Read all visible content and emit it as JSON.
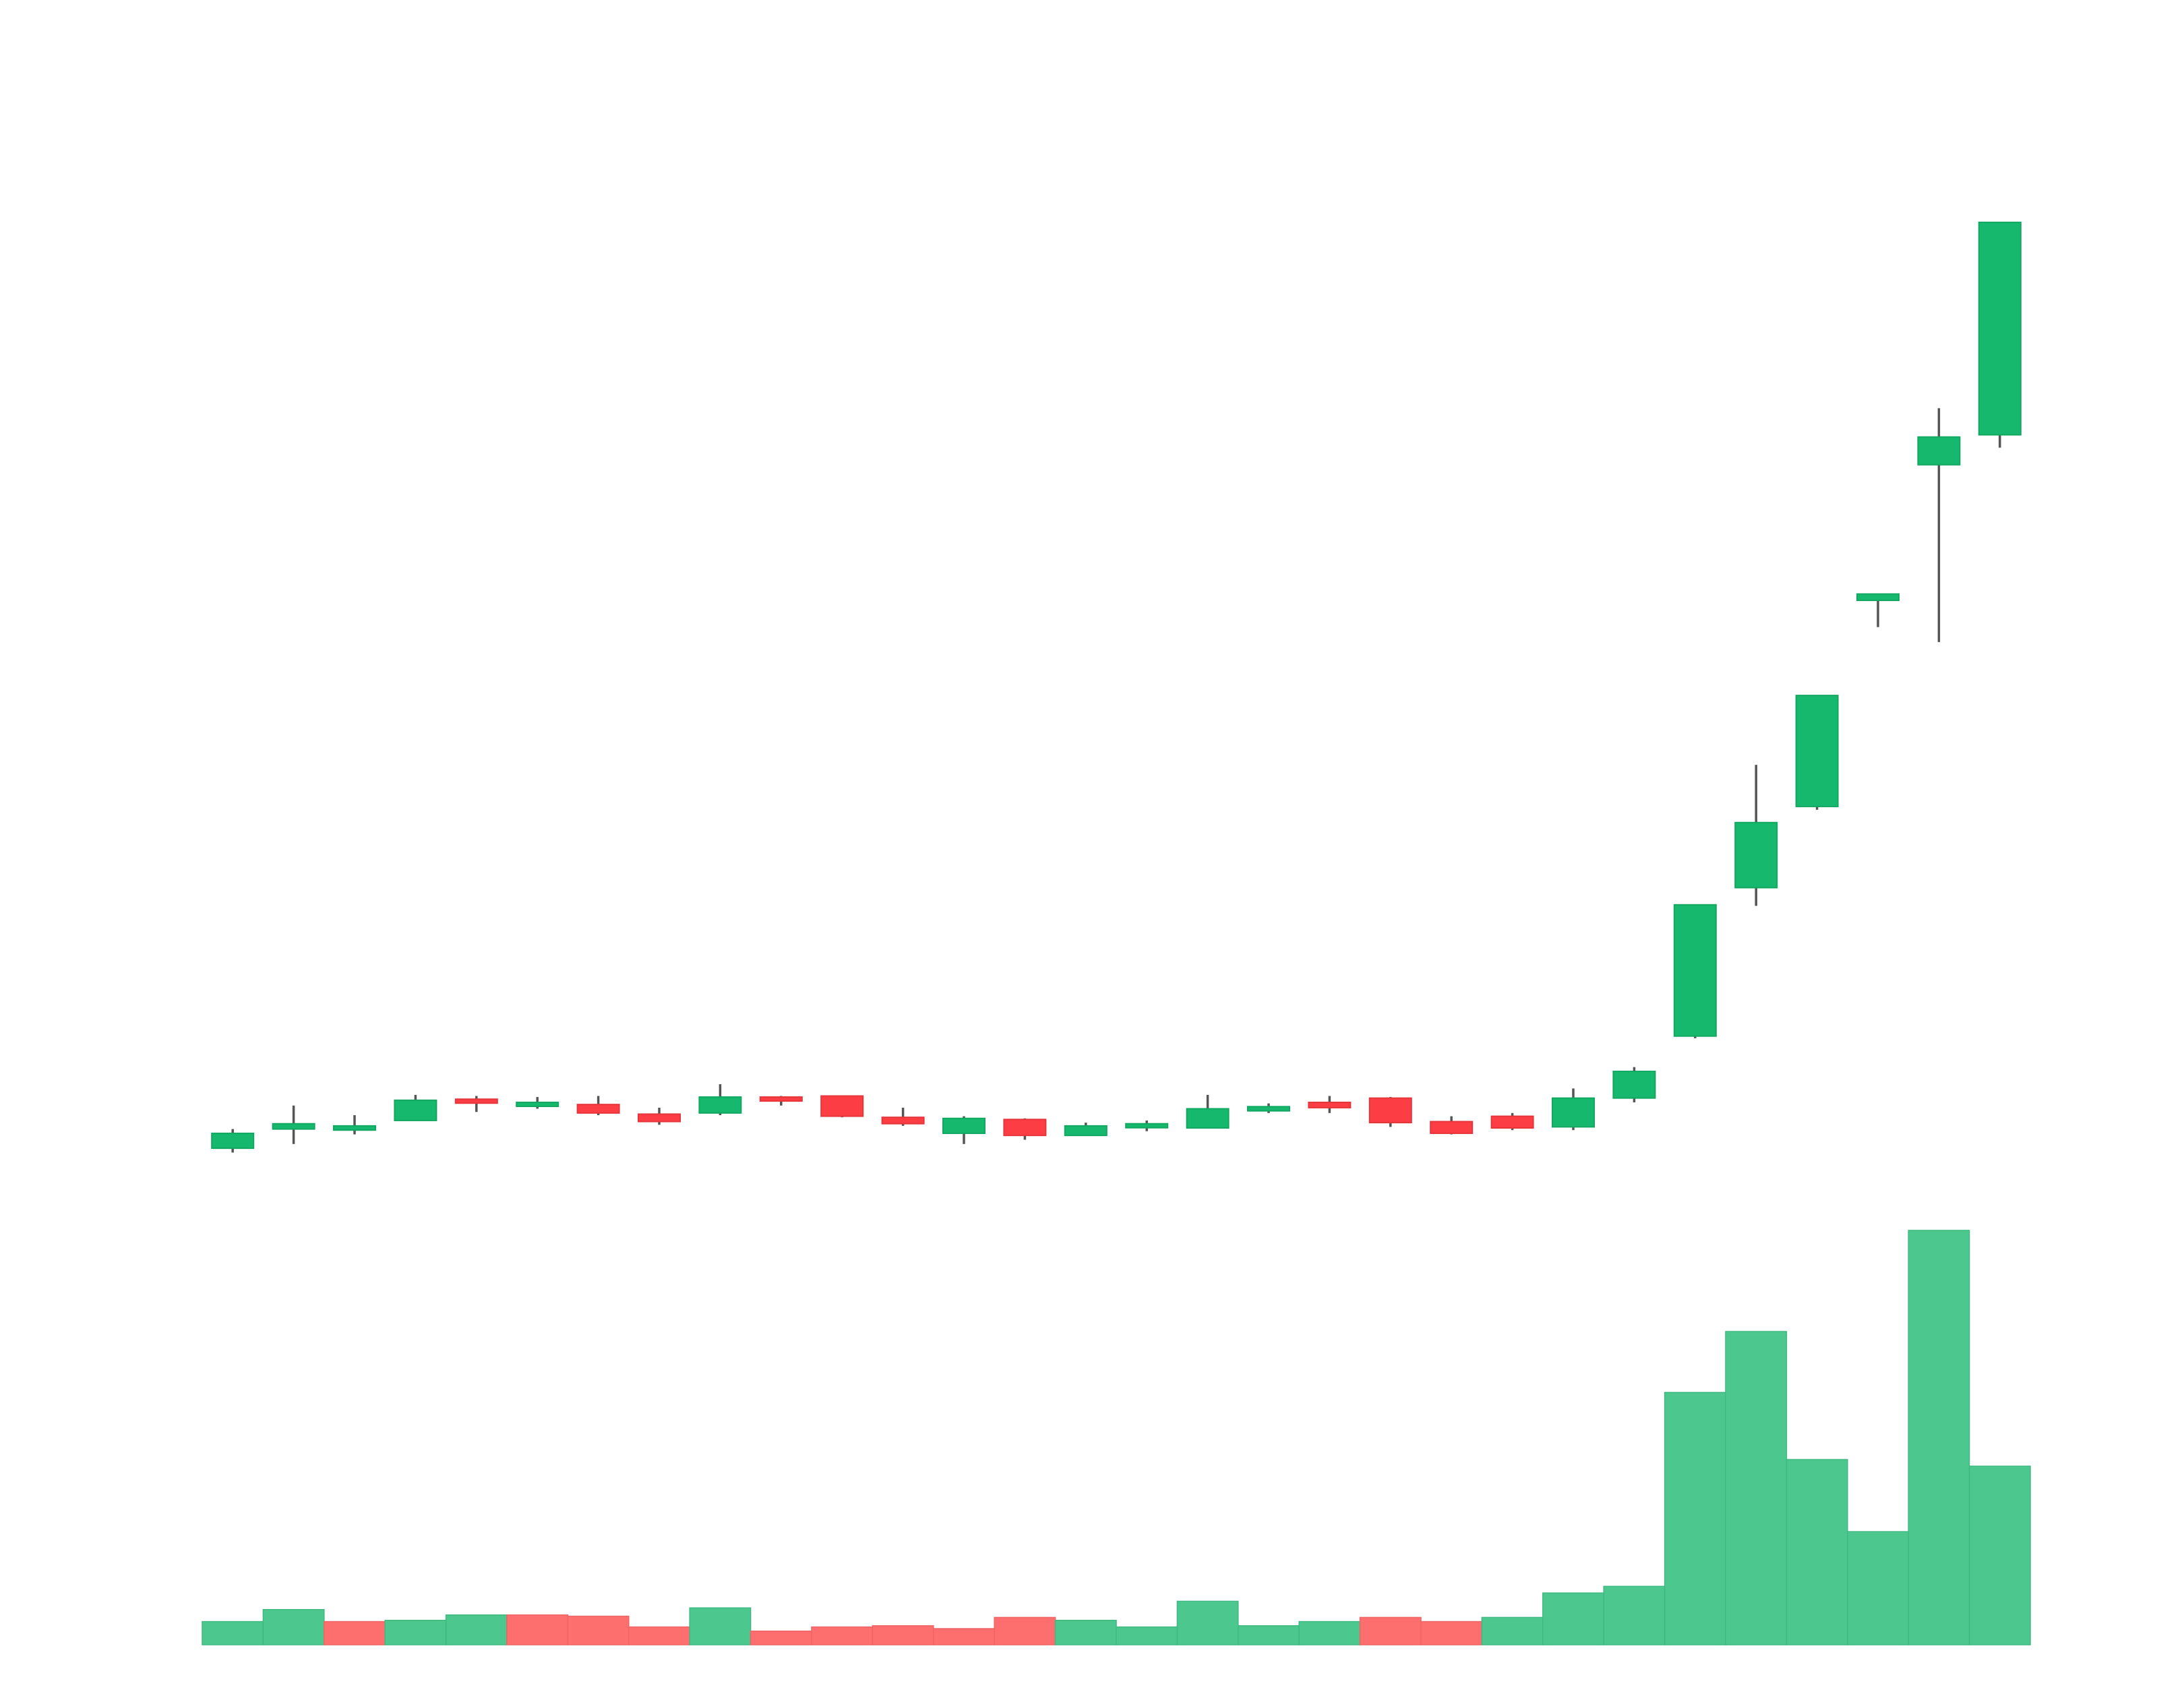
{
  "chart_data": {
    "type": "candlestick",
    "title": "",
    "xlabel": "",
    "ylabel": "",
    "grid": false,
    "legend": "none",
    "colors": {
      "up_body": "#16b86d",
      "down_body": "#fc3d44",
      "wick": "#555555",
      "up_volume": "#4cc88f",
      "down_volume": "#fd6f6f",
      "background": "#ffffff"
    },
    "price_ylim": [
      0,
      100
    ],
    "volume_ylim": [
      0,
      100
    ],
    "candles": [
      {
        "open": 1.0,
        "close": 2.4,
        "high": 2.8,
        "low": 0.6
      },
      {
        "open": 2.8,
        "close": 3.3,
        "high": 5.0,
        "low": 1.4
      },
      {
        "open": 2.7,
        "close": 3.1,
        "high": 4.1,
        "low": 2.3
      },
      {
        "open": 3.6,
        "close": 5.5,
        "high": 6.0,
        "low": 3.6
      },
      {
        "open": 5.6,
        "close": 5.4,
        "high": 5.9,
        "low": 4.4
      },
      {
        "open": 5.1,
        "close": 5.3,
        "high": 5.8,
        "low": 4.7
      },
      {
        "open": 5.1,
        "close": 4.3,
        "high": 5.9,
        "low": 4.1
      },
      {
        "open": 4.2,
        "close": 3.5,
        "high": 4.8,
        "low": 3.2
      },
      {
        "open": 4.3,
        "close": 5.8,
        "high": 7.0,
        "low": 4.1
      },
      {
        "open": 5.8,
        "close": 5.5,
        "high": 5.9,
        "low": 5.0
      },
      {
        "open": 5.9,
        "close": 4.0,
        "high": 5.9,
        "low": 3.9
      },
      {
        "open": 3.9,
        "close": 3.3,
        "high": 4.8,
        "low": 3.1
      },
      {
        "open": 2.4,
        "close": 3.8,
        "high": 4.0,
        "low": 1.4
      },
      {
        "open": 3.7,
        "close": 2.2,
        "high": 3.8,
        "low": 1.8
      },
      {
        "open": 2.2,
        "close": 3.1,
        "high": 3.4,
        "low": 2.2
      },
      {
        "open": 3.1,
        "close": 3.3,
        "high": 3.6,
        "low": 2.6
      },
      {
        "open": 2.9,
        "close": 4.7,
        "high": 6.0,
        "low": 2.9
      },
      {
        "open": 4.5,
        "close": 4.9,
        "high": 5.2,
        "low": 4.3
      },
      {
        "open": 5.3,
        "close": 4.8,
        "high": 5.9,
        "low": 4.3
      },
      {
        "open": 5.7,
        "close": 3.4,
        "high": 5.8,
        "low": 3.0
      },
      {
        "open": 3.5,
        "close": 2.4,
        "high": 4.0,
        "low": 2.3
      },
      {
        "open": 4.0,
        "close": 2.9,
        "high": 4.3,
        "low": 2.7
      },
      {
        "open": 3.0,
        "close": 5.7,
        "high": 6.6,
        "low": 2.7
      },
      {
        "open": 5.7,
        "close": 8.2,
        "high": 8.6,
        "low": 5.3
      },
      {
        "open": 11.5,
        "close": 23.8,
        "high": 23.8,
        "low": 11.3
      },
      {
        "open": 25.4,
        "close": 31.5,
        "high": 36.9,
        "low": 23.7
      },
      {
        "open": 33.0,
        "close": 43.4,
        "high": 43.4,
        "low": 32.7
      },
      {
        "open": 52.3,
        "close": 52.9,
        "high": 52.9,
        "low": 49.8
      },
      {
        "open": 65.0,
        "close": 67.6,
        "high": 70.3,
        "low": 48.4
      },
      {
        "open": 67.8,
        "close": 87.7,
        "high": 87.7,
        "low": 66.6
      }
    ],
    "volume": [
      {
        "value": 5.6,
        "dir": "up"
      },
      {
        "value": 8.5,
        "dir": "up"
      },
      {
        "value": 5.6,
        "dir": "down"
      },
      {
        "value": 5.9,
        "dir": "up"
      },
      {
        "value": 7.2,
        "dir": "up"
      },
      {
        "value": 7.2,
        "dir": "down"
      },
      {
        "value": 6.9,
        "dir": "down"
      },
      {
        "value": 4.3,
        "dir": "down"
      },
      {
        "value": 8.9,
        "dir": "up"
      },
      {
        "value": 3.3,
        "dir": "down"
      },
      {
        "value": 4.3,
        "dir": "down"
      },
      {
        "value": 4.6,
        "dir": "down"
      },
      {
        "value": 3.9,
        "dir": "down"
      },
      {
        "value": 6.6,
        "dir": "down"
      },
      {
        "value": 5.9,
        "dir": "up"
      },
      {
        "value": 4.3,
        "dir": "up"
      },
      {
        "value": 10.5,
        "dir": "up"
      },
      {
        "value": 4.6,
        "dir": "up"
      },
      {
        "value": 5.6,
        "dir": "up"
      },
      {
        "value": 6.6,
        "dir": "down"
      },
      {
        "value": 5.6,
        "dir": "down"
      },
      {
        "value": 6.6,
        "dir": "up"
      },
      {
        "value": 12.5,
        "dir": "up"
      },
      {
        "value": 14.1,
        "dir": "up"
      },
      {
        "value": 60.9,
        "dir": "up"
      },
      {
        "value": 75.6,
        "dir": "up"
      },
      {
        "value": 44.7,
        "dir": "up"
      },
      {
        "value": 27.3,
        "dir": "up"
      },
      {
        "value": 100.0,
        "dir": "up"
      },
      {
        "value": 43.1,
        "dir": "up"
      }
    ]
  }
}
